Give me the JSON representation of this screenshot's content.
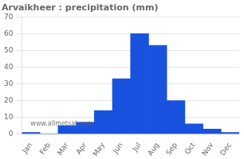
{
  "chart_data": {
    "type": "bar",
    "title": "Arvaikheer : precipitation (mm)",
    "categories": [
      "Jan",
      "Feb",
      "Mar",
      "Apr",
      "May",
      "Jun",
      "Jul",
      "Aug",
      "Sep",
      "Oct",
      "Nov",
      "Dec"
    ],
    "values": [
      1,
      0,
      5,
      7,
      14,
      33,
      60,
      53,
      20,
      6,
      3,
      1
    ],
    "color": "#1a52e0",
    "ylim": [
      0,
      70
    ],
    "yticks": [
      0,
      10,
      20,
      30,
      40,
      50,
      60,
      70
    ],
    "grid": true,
    "annotation": "www.allmetsat.com"
  }
}
